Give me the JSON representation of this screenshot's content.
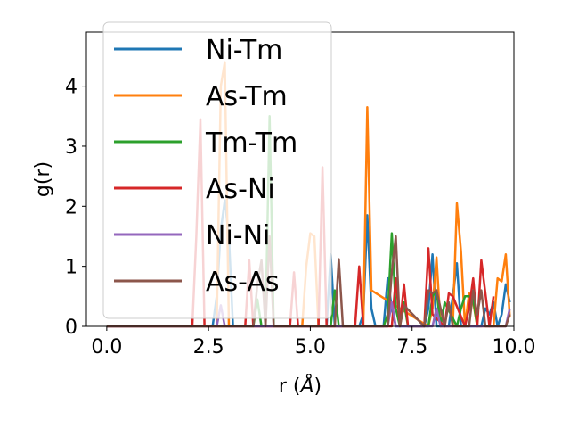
{
  "chart_data": {
    "type": "line",
    "xlabel": "r (",
    "xlabel_unit": "Å",
    "xlabel_close": ")",
    "ylabel": "g(r)",
    "xlim": [
      -0.5,
      10.0
    ],
    "ylim": [
      0,
      4.9
    ],
    "xticks": [
      0.0,
      2.5,
      5.0,
      7.5,
      10.0
    ],
    "xtick_labels": [
      "0.0",
      "2.5",
      "5.0",
      "7.5",
      "10.0"
    ],
    "yticks": [
      0,
      1,
      2,
      3,
      4
    ],
    "ytick_labels": [
      "0",
      "1",
      "2",
      "3",
      "4"
    ],
    "grid": false,
    "legend_position": "top-left",
    "series": [
      {
        "name": "Ni-Tm",
        "color": "#1f77b4",
        "x": [
          0,
          2.6,
          2.7,
          2.8,
          2.9,
          3.0,
          3.1,
          5.4,
          5.5,
          5.6,
          6.2,
          6.3,
          6.4,
          6.5,
          6.6,
          6.8,
          6.9,
          7.0,
          7.1,
          7.8,
          7.9,
          8.0,
          8.1,
          8.4,
          8.5,
          8.6,
          8.7,
          9.2,
          9.3,
          9.4,
          9.5,
          9.6,
          9.7,
          9.8,
          9.9
        ],
        "y": [
          0,
          0,
          0.5,
          1.6,
          2.1,
          1.5,
          0,
          0,
          1.2,
          0,
          0,
          0.2,
          1.85,
          0.3,
          0,
          0,
          0.8,
          0.3,
          0,
          0,
          0.3,
          1.2,
          0,
          0,
          0.5,
          1.05,
          0,
          0,
          0.3,
          0.2,
          0.4,
          0,
          0.2,
          0.7,
          0.4
        ]
      },
      {
        "name": "As-Tm",
        "color": "#ff7f0e",
        "x": [
          0,
          2.7,
          2.8,
          2.9,
          3.0,
          4.8,
          4.9,
          5.0,
          5.1,
          5.2,
          6.3,
          6.4,
          6.5,
          7.9,
          8.0,
          8.1,
          8.2,
          8.5,
          8.6,
          8.7,
          8.8,
          8.9,
          9.0,
          9.1,
          9.5,
          9.6,
          9.7,
          9.8,
          9.9
        ],
        "y": [
          0,
          0,
          4.0,
          4.4,
          0,
          0,
          1.0,
          1.55,
          1.5,
          0,
          0,
          3.65,
          0.6,
          0,
          0.3,
          1.15,
          0,
          0,
          2.05,
          1.25,
          0,
          0.55,
          0.4,
          0,
          0,
          0.8,
          0.75,
          1.2,
          0.15
        ]
      },
      {
        "name": "Tm-Tm",
        "color": "#2ca02c",
        "x": [
          0,
          3.6,
          3.7,
          3.8,
          3.9,
          4.0,
          4.1,
          5.5,
          5.6,
          5.7,
          6.8,
          6.9,
          7.0,
          7.1,
          7.2,
          7.3,
          7.4,
          7.9,
          8.0,
          8.1,
          8.2,
          8.3,
          8.6,
          8.7,
          8.8,
          8.9,
          9.0,
          9.1
        ],
        "y": [
          0,
          0,
          0.45,
          0,
          0,
          3.5,
          0,
          0,
          0.6,
          0,
          0,
          0.2,
          1.55,
          0.3,
          0,
          0.4,
          0,
          0,
          0.5,
          0.6,
          0,
          0.4,
          0,
          0.3,
          0.5,
          0.5,
          0.45,
          0
        ]
      },
      {
        "name": "As-Ni",
        "color": "#d62728",
        "x": [
          0,
          2.1,
          2.2,
          2.3,
          2.4,
          3.4,
          3.5,
          3.6,
          4.5,
          4.6,
          4.7,
          5.2,
          5.3,
          5.4,
          6.1,
          6.2,
          6.3,
          7.0,
          7.1,
          7.2,
          7.3,
          7.4,
          7.8,
          7.9,
          8.0,
          8.3,
          8.4,
          8.5,
          8.8,
          8.9,
          9.0,
          9.1,
          9.2,
          9.4,
          9.5
        ],
        "y": [
          0,
          0,
          1.5,
          3.45,
          0,
          0,
          1.1,
          0,
          0,
          0.9,
          0,
          0,
          2.65,
          0,
          0,
          1.0,
          0,
          0,
          0.8,
          0,
          0.7,
          0,
          0,
          1.3,
          0.2,
          0,
          0.55,
          0.5,
          0,
          0.3,
          0.8,
          0,
          1.1,
          0,
          0.5
        ]
      },
      {
        "name": "Ni-Ni",
        "color": "#9467bd",
        "x": [
          0,
          2.7,
          2.8,
          2.9,
          6.9,
          7.0,
          7.1,
          8.0,
          8.1,
          8.2,
          9.8,
          9.9
        ],
        "y": [
          0,
          0,
          0.35,
          0,
          0,
          0.4,
          0,
          0,
          0.3,
          0,
          0,
          0.3
        ]
      },
      {
        "name": "As-As",
        "color": "#8c564b",
        "x": [
          0,
          3.6,
          3.7,
          3.8,
          3.9,
          4.0,
          4.1,
          5.6,
          5.7,
          5.8,
          6.9,
          7.0,
          7.1,
          7.2,
          7.3,
          7.8,
          7.9,
          8.0,
          8.1,
          8.2,
          8.3,
          8.4,
          8.5,
          8.9,
          9.0,
          9.1,
          9.2,
          9.3,
          9.8,
          9.9
        ],
        "y": [
          0,
          0,
          0.7,
          1.1,
          0,
          1.5,
          0,
          0,
          1.12,
          0,
          0,
          0.9,
          1.5,
          0,
          0.35,
          0,
          0.6,
          0.55,
          0.6,
          0.3,
          0,
          0.4,
          0,
          0,
          0.6,
          0.2,
          0.6,
          0,
          0,
          0.2
        ]
      }
    ]
  }
}
